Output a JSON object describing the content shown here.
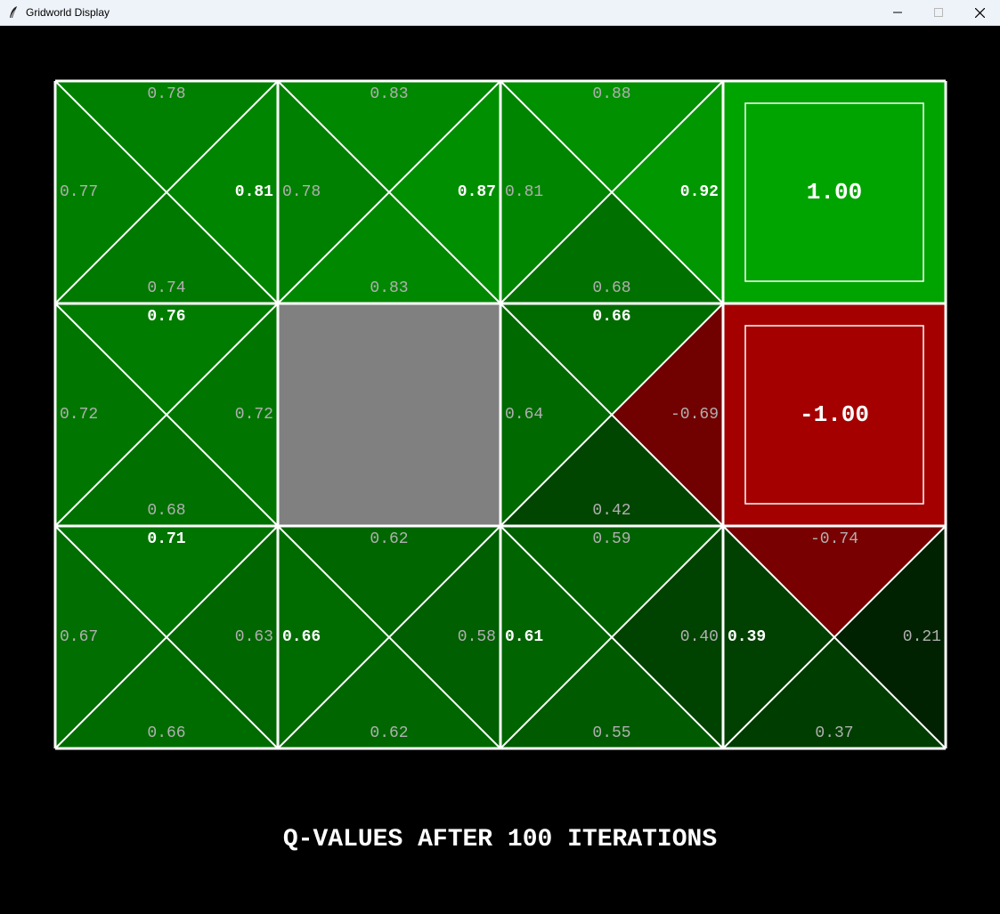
{
  "window": {
    "title": "Gridworld Display",
    "controls": [
      "minimize",
      "maximize",
      "close"
    ]
  },
  "caption": "Q-VALUES AFTER 100 ITERATIONS",
  "colors": {
    "background": "#000000",
    "grid_line": "#ffffff",
    "wall": "#808080",
    "positive_exit": "#00a400",
    "negative_exit": "#a40000",
    "text_best": "#ffffff",
    "text_other": "#b0b0b0"
  },
  "grid": {
    "columns": 4,
    "rows": 3,
    "cells": [
      {
        "row": 0,
        "col": 0,
        "type": "q",
        "q": {
          "north": "0.78",
          "west": "0.77",
          "east": "0.81",
          "south": "0.74"
        },
        "best": "east"
      },
      {
        "row": 0,
        "col": 1,
        "type": "q",
        "q": {
          "north": "0.83",
          "west": "0.78",
          "east": "0.87",
          "south": "0.83"
        },
        "best": "east"
      },
      {
        "row": 0,
        "col": 2,
        "type": "q",
        "q": {
          "north": "0.88",
          "west": "0.81",
          "east": "0.92",
          "south": "0.68"
        },
        "best": "east"
      },
      {
        "row": 0,
        "col": 3,
        "type": "exit",
        "value": "1.00"
      },
      {
        "row": 1,
        "col": 0,
        "type": "q",
        "q": {
          "north": "0.76",
          "west": "0.72",
          "east": "0.72",
          "south": "0.68"
        },
        "best": "north"
      },
      {
        "row": 1,
        "col": 1,
        "type": "wall"
      },
      {
        "row": 1,
        "col": 2,
        "type": "q",
        "q": {
          "north": "0.66",
          "west": "0.64",
          "east": "-0.69",
          "south": "0.42"
        },
        "best": "north"
      },
      {
        "row": 1,
        "col": 3,
        "type": "exit",
        "value": "-1.00"
      },
      {
        "row": 2,
        "col": 0,
        "type": "q",
        "q": {
          "north": "0.71",
          "west": "0.67",
          "east": "0.63",
          "south": "0.66"
        },
        "best": "north"
      },
      {
        "row": 2,
        "col": 1,
        "type": "q",
        "q": {
          "north": "0.62",
          "west": "0.66",
          "east": "0.58",
          "south": "0.62"
        },
        "best": "west"
      },
      {
        "row": 2,
        "col": 2,
        "type": "q",
        "q": {
          "north": "0.59",
          "west": "0.61",
          "east": "0.40",
          "south": "0.55"
        },
        "best": "west"
      },
      {
        "row": 2,
        "col": 3,
        "type": "q",
        "q": {
          "north": "-0.74",
          "west": "0.39",
          "east": "0.21",
          "south": "0.37"
        },
        "best": "west"
      }
    ]
  }
}
